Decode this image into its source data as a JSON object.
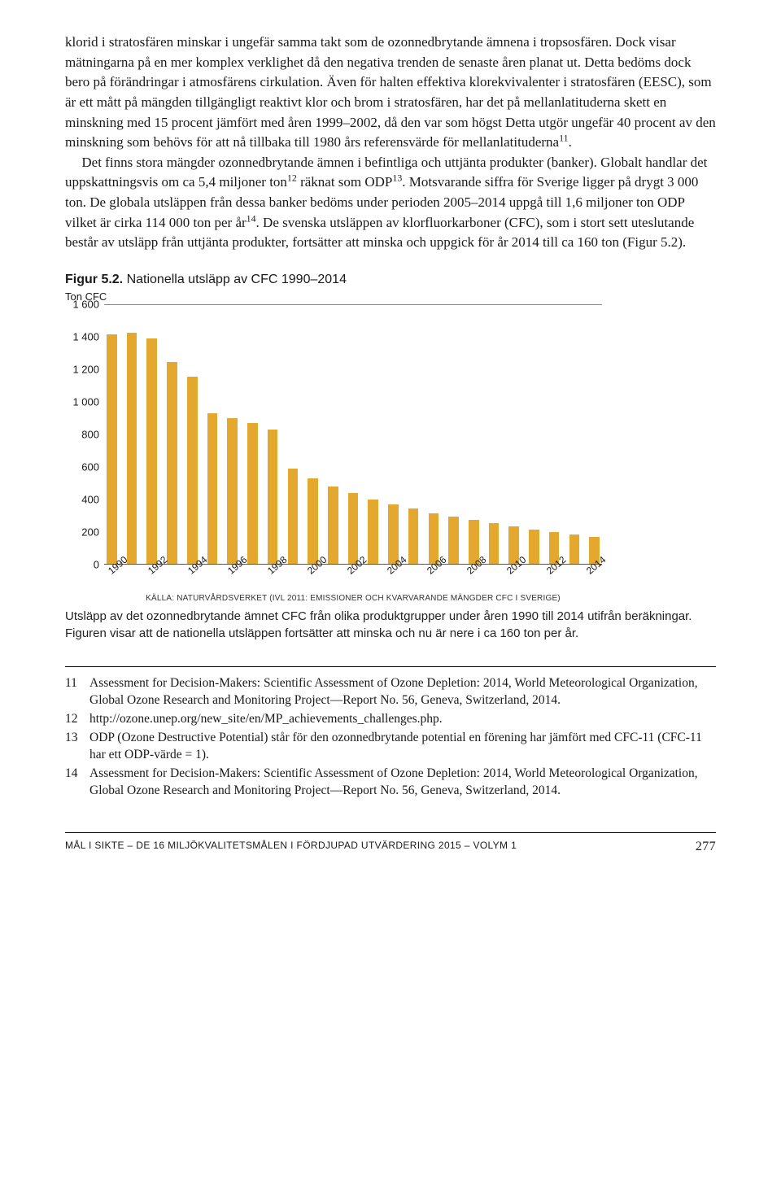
{
  "body": {
    "p1": "klorid i stratosfären minskar i ungefär samma takt som de ozonnedbrytande ämnena i tropsosfären. Dock visar mätningarna på en mer komplex verklighet då den negativa trenden de senaste åren planat ut. Detta bedöms dock bero på förändringar i atmosfärens cirkulation. Även för halten effektiva klorekvivalenter i stratosfären (EESC), som är ett mått på mängden tillgängligt reaktivt klor och brom i stratosfären, har det på mellanlatituderna skett en minskning med 15 procent jämfört med åren 1999–2002, då den var som högst Detta utgör ungefär 40 procent av den minskning som behövs för att nå tillbaka till 1980 års referensvärde för mellanlatituderna",
    "p1_sup": "11",
    "p1_tail": ".",
    "p2a": "Det finns stora mängder ozonnedbrytande ämnen i befintliga och uttjänta produkter (banker). Globalt handlar det uppskattningsvis om ca 5,4 miljoner ton",
    "p2a_sup": "12",
    "p2b": " räknat som ODP",
    "p2b_sup": "13",
    "p2c": ". Motsvarande siffra för Sverige ligger på drygt 3 000 ton. De globala utsläppen från dessa banker bedöms under perioden 2005–2014 uppgå till 1,6 miljoner ton ODP vilket är cirka 114 000 ton per år",
    "p2c_sup": "14",
    "p2d": ". De svenska utsläppen av klorfluorkarboner (CFC), som i stort sett uteslutande består av utsläpp från uttjänta produkter, fortsätter att minska och uppgick för år 2014 till ca 160 ton (Figur 5.2)."
  },
  "figure": {
    "label": "Figur 5.2.",
    "title": " Nationella utsläpp av CFC 1990–2014",
    "y_axis_title": "Ton CFC",
    "source": "KÄLLA: NATURVÅRDSVERKET (IVL 2011: EMISSIONER OCH KVARVARANDE MÄNGDER CFC I SVERIGE)",
    "caption": "Utsläpp av det ozonnedbrytande ämnet CFC från olika produktgrupper under åren 1990 till 2014 utifrån beräkningar. Figuren visar att de nationella utsläppen fortsätter att minska och nu är nere i ca 160 ton per år."
  },
  "chart": {
    "type": "bar",
    "ylim": [
      0,
      1600
    ],
    "ytick_step": 200,
    "yticks": [
      "1 600",
      "1 400",
      "1 200",
      "1 000",
      "800",
      "600",
      "400",
      "200",
      "0"
    ],
    "categories": [
      "1990",
      "1991",
      "1992",
      "1993",
      "1994",
      "1995",
      "1996",
      "1997",
      "1998",
      "1999",
      "2000",
      "2001",
      "2002",
      "2003",
      "2004",
      "2005",
      "2006",
      "2007",
      "2008",
      "2009",
      "2010",
      "2011",
      "2012",
      "2013",
      "2014"
    ],
    "xtick_show": [
      "1990",
      "1992",
      "1994",
      "1996",
      "1998",
      "2000",
      "2002",
      "2004",
      "2006",
      "2008",
      "2010",
      "2012",
      "2014"
    ],
    "values": [
      1420,
      1430,
      1395,
      1250,
      1160,
      930,
      900,
      870,
      830,
      590,
      530,
      480,
      440,
      400,
      370,
      340,
      310,
      290,
      270,
      250,
      230,
      210,
      195,
      180,
      165
    ],
    "bar_color": "#e5a82e",
    "background_color": "#ffffff",
    "axis_color": "#555555",
    "label_fontsize": 13,
    "xtick_rotation": -40
  },
  "footnotes": {
    "n11": {
      "num": "11",
      "text": "Assessment for Decision-Makers: Scientific Assessment of Ozone Depletion: 2014, World Meteorological Organization, Global Ozone Research and Monitoring Project—Report No. 56, Geneva, Switzerland, 2014."
    },
    "n12": {
      "num": "12",
      "text": "http://ozone.unep.org/new_site/en/MP_achievements_challenges.php."
    },
    "n13": {
      "num": "13",
      "text": "ODP (Ozone Destructive Potential) står för den ozonnedbrytande potential en förening har jämfört med CFC-11 (CFC-11 har ett ODP-värde = 1)."
    },
    "n14": {
      "num": "14",
      "text": "Assessment for Decision-Makers: Scientific Assessment of Ozone Depletion: 2014, World Meteorological Organization, Global Ozone Research and Monitoring Project—Report No. 56, Geneva, Switzerland, 2014."
    }
  },
  "footer": {
    "left": "MÅL I SIKTE – DE 16 MILJÖKVALITETSMÅLEN I FÖRDJUPAD UTVÄRDERING 2015 – VOLYM 1",
    "page": "277"
  }
}
